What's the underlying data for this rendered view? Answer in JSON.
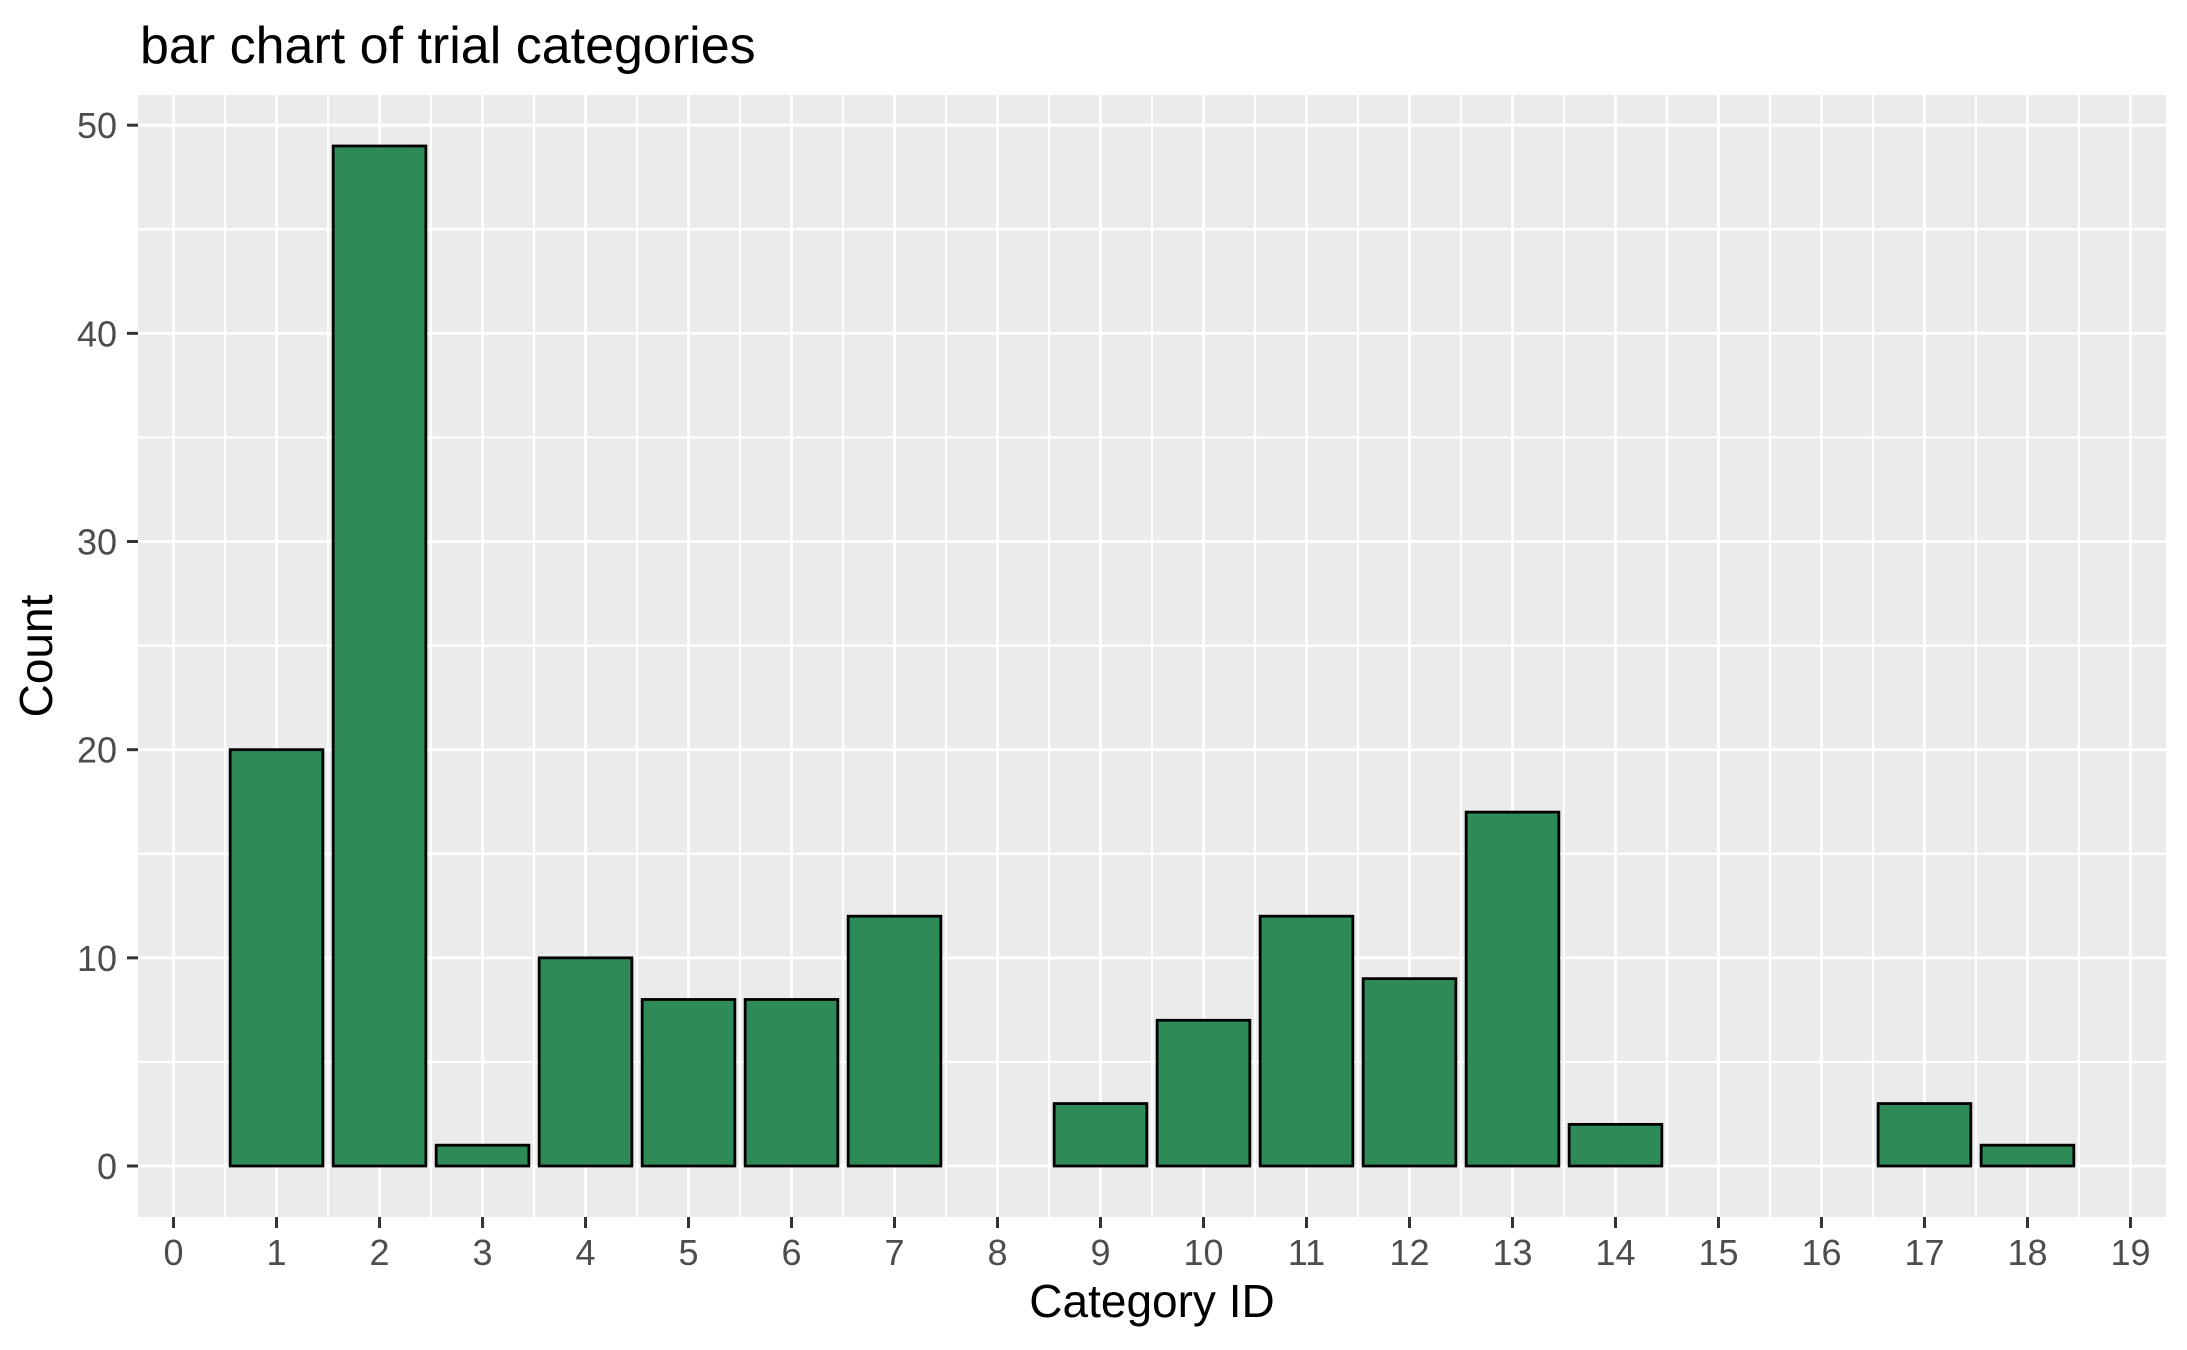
{
  "chart_data": {
    "type": "bar",
    "title": "bar chart of trial categories",
    "xlabel": "Category ID",
    "ylabel": "Count",
    "x": [
      1,
      2,
      3,
      4,
      5,
      6,
      7,
      9,
      10,
      11,
      12,
      13,
      14,
      17,
      18
    ],
    "values": [
      20,
      49,
      1,
      10,
      8,
      8,
      12,
      3,
      7,
      12,
      9,
      17,
      2,
      3,
      1
    ],
    "bar_width": 0.9,
    "xlim": [
      -0.345,
      19.345
    ],
    "ylim": [
      -2.45,
      51.45
    ],
    "x_ticks": [
      0,
      1,
      2,
      3,
      4,
      5,
      6,
      7,
      8,
      9,
      10,
      11,
      12,
      13,
      14,
      15,
      16,
      17,
      18,
      19
    ],
    "y_ticks": [
      0,
      10,
      20,
      30,
      40,
      50
    ],
    "y_minor_ticks": [
      5,
      15,
      25,
      35,
      45
    ],
    "grid": "on",
    "legend": "none",
    "colors": {
      "bar_fill": "#2E8B57",
      "bar_stroke": "#000000",
      "panel_background": "#EBEBEB",
      "gridline": "#FFFFFF",
      "figure_background": "#FFFFFF",
      "tick_mark": "#333333",
      "tick_label": "#4D4D4D",
      "text": "#000000"
    }
  }
}
